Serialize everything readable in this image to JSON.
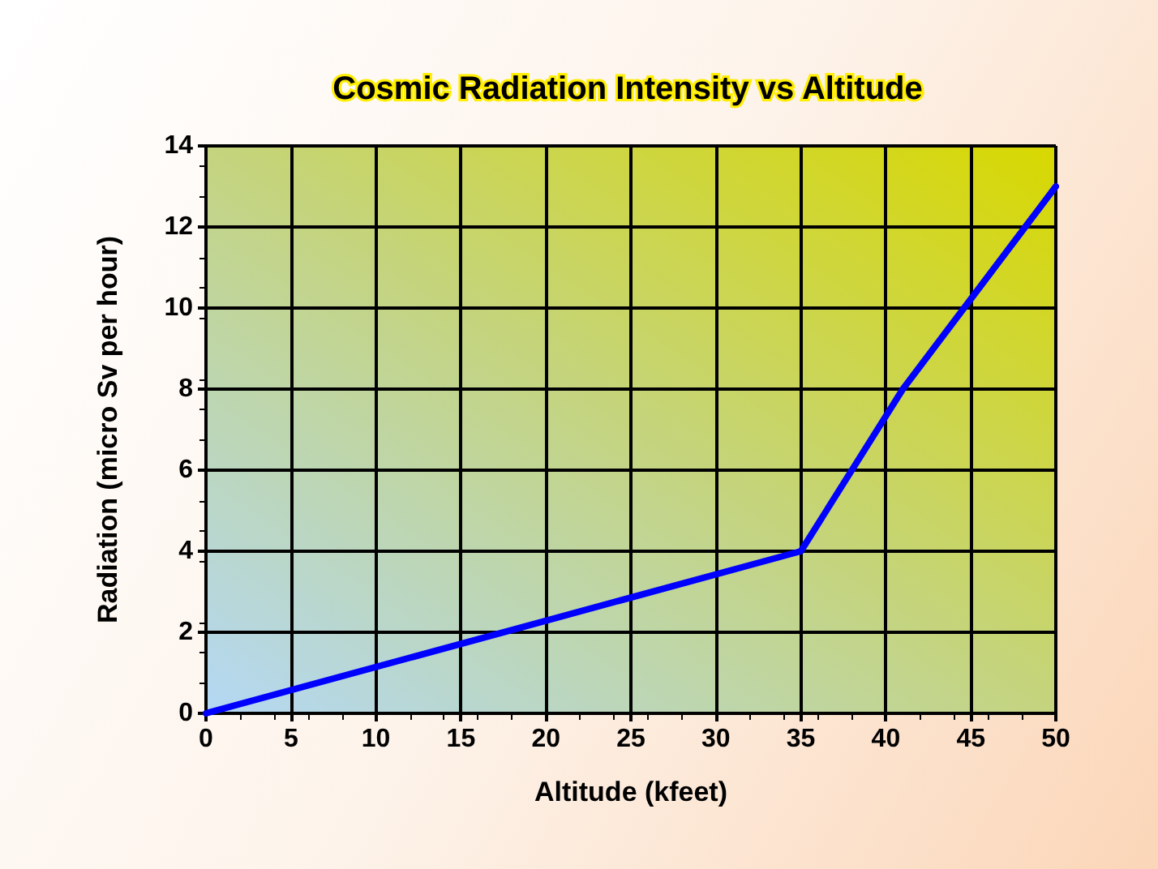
{
  "chart_data": {
    "type": "line",
    "title": "Cosmic Radiation Intensity vs Altitude",
    "xlabel": "Altitude (kfeet)",
    "ylabel": "Radiation (micro Sv per hour)",
    "x": [
      0,
      35,
      41,
      50
    ],
    "series": [
      {
        "color": "#0000ff",
        "values": [
          0,
          4,
          8,
          13
        ]
      }
    ],
    "xlim": [
      0,
      50
    ],
    "xticks": [
      0,
      5,
      10,
      15,
      20,
      25,
      30,
      35,
      40,
      45,
      50
    ],
    "ylim": [
      0,
      14
    ],
    "yticks": [
      0,
      2,
      4,
      6,
      8,
      10,
      12,
      14
    ],
    "grid": true,
    "marker": "none",
    "line_style": "solid"
  }
}
